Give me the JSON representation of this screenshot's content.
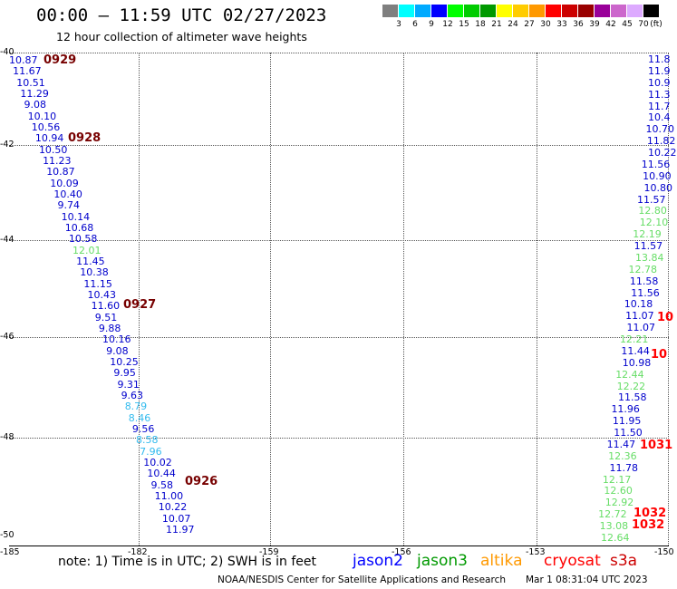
{
  "header": {
    "title": "00:00 – 11:59 UTC 02/27/2023",
    "subtitle": "12 hour collection of altimeter wave heights"
  },
  "legend_scale": {
    "unit": "(ft)",
    "colors": [
      "#7f7f7f",
      "#00ffff",
      "#00aaff",
      "#0000ff",
      "#00ff00",
      "#00cc00",
      "#009900",
      "#ffff00",
      "#ffcc00",
      "#ff9900",
      "#ff0000",
      "#cc0000",
      "#990000",
      "#990099",
      "#cc66cc",
      "#ddaaff",
      "#000000"
    ],
    "labels": [
      "3",
      "6",
      "9",
      "12",
      "15",
      "18",
      "21",
      "24",
      "27",
      "30",
      "33",
      "36",
      "39",
      "42",
      "45",
      "70"
    ]
  },
  "axes": {
    "lat_labels": [
      "-40",
      "-42",
      "-44",
      "-46",
      "-48",
      "-50"
    ],
    "lon_labels": [
      "-185",
      "-182",
      "-159",
      "-156",
      "-153",
      "-150"
    ]
  },
  "track_left": [
    "10.87",
    "11.67",
    "10.51",
    "11.29",
    "9.08",
    "10.10",
    "10.56",
    "10.94",
    "10.50",
    "11.23",
    "10.87",
    "10.09",
    "10.40",
    "9.74",
    "10.14",
    "10.68",
    "10.58",
    "12.01",
    "11.45",
    "10.38",
    "11.15",
    "10.43",
    "11.60",
    "9.51",
    "9.88",
    "10.16",
    "9.08",
    "10.25",
    "9.95",
    "9.31",
    "9.63",
    "8.79",
    "8.46",
    "9.56",
    "8.58",
    "7.96",
    "10.02",
    "10.44",
    "9.58",
    "11.00",
    "10.22",
    "10.07",
    "11.97"
  ],
  "pass_labels": [
    "0929",
    "0928",
    "0927",
    "0926"
  ],
  "track_right": [
    "11.8",
    "11.9",
    "10.9",
    "11.3",
    "11.7",
    "10.4",
    "10.70",
    "11.82",
    "10.22",
    "11.56",
    "10.90",
    "10.80",
    "11.57",
    "12.80",
    "12.10",
    "12.19",
    "11.57",
    "13.84",
    "12.78",
    "11.58",
    "11.56",
    "10.18",
    "11.07",
    "11.07",
    "12.21",
    "11.44",
    "10.98",
    "12.44",
    "12.22",
    "11.58",
    "11.96",
    "11.95",
    "11.50",
    "11.47",
    "12.36",
    "11.78",
    "12.17",
    "12.60",
    "12.92",
    "12.72",
    "13.08",
    "12.64"
  ],
  "pass_right": [
    "10",
    "10",
    "1031",
    "1032",
    "1032"
  ],
  "note": "note:  1) Time is in UTC;  2) SWH is in feet",
  "satellites": [
    {
      "name": "jason2",
      "color": "#0000ff"
    },
    {
      "name": "jason3",
      "color": "#009900"
    },
    {
      "name": "altika",
      "color": "#ff9900"
    },
    {
      "name": "cryosat",
      "color": "#ff0000"
    },
    {
      "name": "s3a",
      "color": "#cc0000"
    }
  ],
  "credit": "NOAA/NESDIS Center for Satellite Applications and Research",
  "timestamp": "Mar  1 08:31:04 UTC 2023"
}
